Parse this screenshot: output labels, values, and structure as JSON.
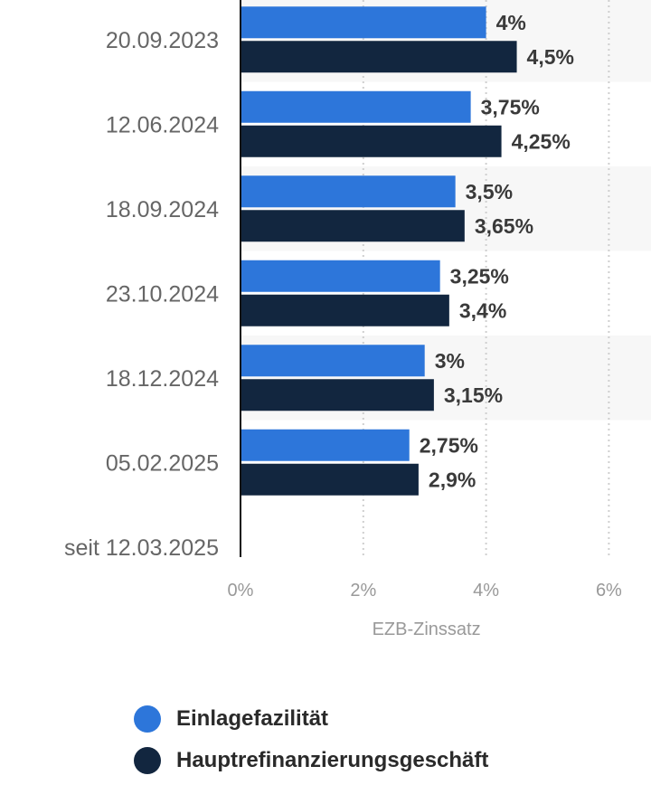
{
  "chart_data": {
    "type": "bar",
    "orientation": "horizontal",
    "categories": [
      "20.09.2023",
      "12.06.2024",
      "18.09.2024",
      "23.10.2024",
      "18.12.2024",
      "05.02.2025",
      "seit 12.03.2025"
    ],
    "series": [
      {
        "name": "Einlagefazilität",
        "color": "#2d76da",
        "values": [
          4,
          3.75,
          3.5,
          3.25,
          3,
          2.75,
          null
        ],
        "labels": [
          "4%",
          "3,75%",
          "3,5%",
          "3,25%",
          "3%",
          "2,75%",
          ""
        ]
      },
      {
        "name": "Hauptrefinanzierungsgeschäft",
        "color": "#12263f",
        "values": [
          4.5,
          4.25,
          3.65,
          3.4,
          3.15,
          2.9,
          null
        ],
        "labels": [
          "4,5%",
          "4,25%",
          "3,65%",
          "3,4%",
          "3,15%",
          "2,9%",
          ""
        ]
      }
    ],
    "xlabel": "EZB-Zinssatz",
    "xlim": [
      0,
      6
    ],
    "xticks": [
      0,
      2,
      4,
      6
    ],
    "xtick_labels": [
      "0%",
      "2%",
      "4%",
      "6%"
    ],
    "grid": "vertical dotted",
    "legend_position": "bottom"
  }
}
